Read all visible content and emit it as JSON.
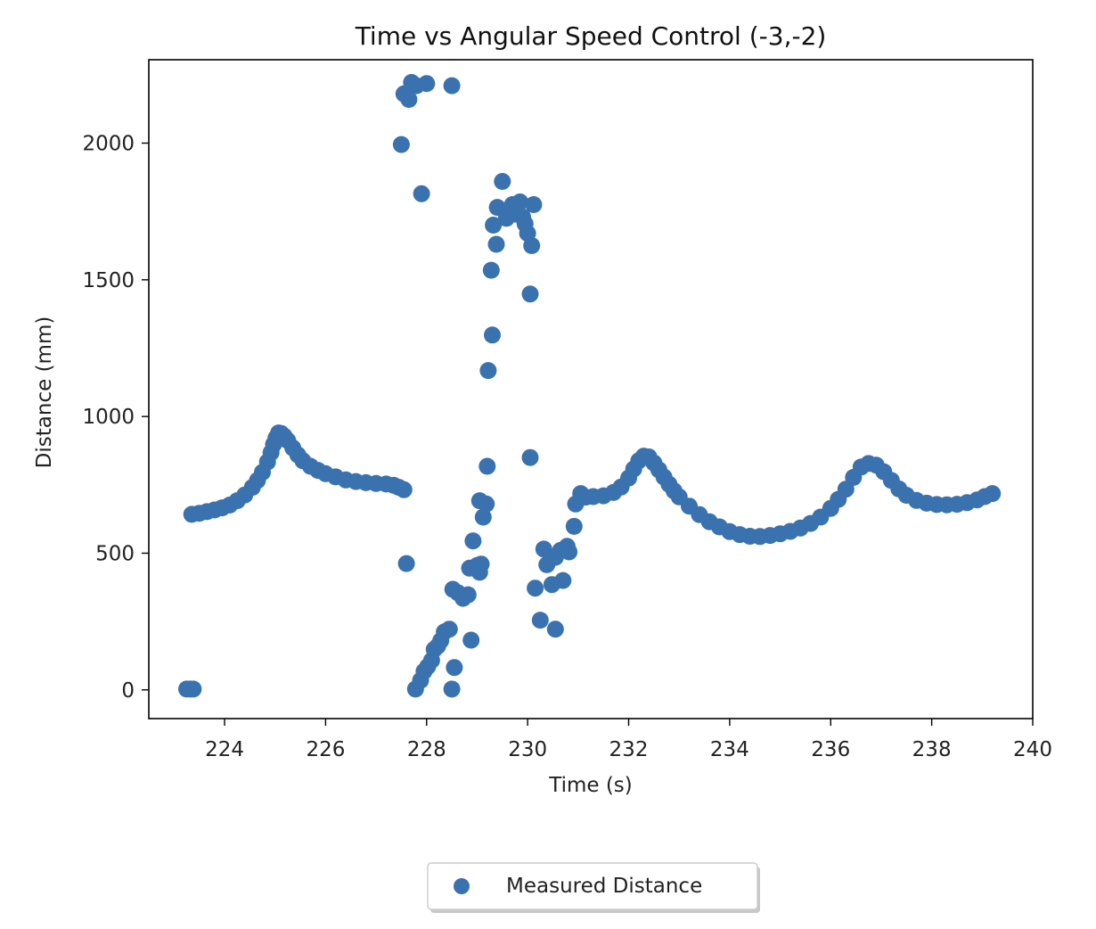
{
  "chart_data": {
    "type": "scatter",
    "title": "Time vs Angular Speed Control (-3,-2)",
    "xlabel": "Time (s)",
    "ylabel": "Distance (mm)",
    "xlim": [
      222.5,
      240
    ],
    "ylim": [
      -105,
      2305
    ],
    "xticks": [
      224,
      226,
      228,
      230,
      232,
      234,
      236,
      238,
      240
    ],
    "yticks": [
      0,
      500,
      1000,
      1500,
      2000
    ],
    "grid": false,
    "legend_position": "bottom-center",
    "series": [
      {
        "name": "Measured Distance",
        "color": "#3a72b0",
        "points": [
          [
            223.25,
            3
          ],
          [
            223.32,
            3
          ],
          [
            223.38,
            3
          ],
          [
            223.35,
            642
          ],
          [
            223.5,
            646
          ],
          [
            223.65,
            652
          ],
          [
            223.8,
            658
          ],
          [
            223.95,
            666
          ],
          [
            224.1,
            676
          ],
          [
            224.25,
            692
          ],
          [
            224.4,
            713
          ],
          [
            224.55,
            741
          ],
          [
            224.65,
            766
          ],
          [
            224.75,
            796
          ],
          [
            224.85,
            834
          ],
          [
            224.92,
            868
          ],
          [
            224.97,
            898
          ],
          [
            225.02,
            922
          ],
          [
            225.07,
            940
          ],
          [
            225.12,
            938
          ],
          [
            225.18,
            928
          ],
          [
            225.25,
            912
          ],
          [
            225.35,
            885
          ],
          [
            225.45,
            860
          ],
          [
            225.55,
            838
          ],
          [
            225.7,
            818
          ],
          [
            225.85,
            803
          ],
          [
            226.0,
            791
          ],
          [
            226.2,
            779
          ],
          [
            226.4,
            768
          ],
          [
            226.6,
            762
          ],
          [
            226.8,
            758
          ],
          [
            227.0,
            755
          ],
          [
            227.2,
            753
          ],
          [
            227.35,
            748
          ],
          [
            227.45,
            741
          ],
          [
            227.55,
            732
          ],
          [
            227.6,
            462
          ],
          [
            227.55,
            2180
          ],
          [
            227.65,
            2160
          ],
          [
            227.7,
            2222
          ],
          [
            227.8,
            2210
          ],
          [
            228.0,
            2218
          ],
          [
            228.5,
            2210
          ],
          [
            227.5,
            1995
          ],
          [
            227.9,
            1815
          ],
          [
            227.78,
            3
          ],
          [
            227.88,
            35
          ],
          [
            227.95,
            68
          ],
          [
            228.02,
            85
          ],
          [
            228.1,
            108
          ],
          [
            228.15,
            148
          ],
          [
            228.22,
            160
          ],
          [
            228.28,
            180
          ],
          [
            228.35,
            212
          ],
          [
            228.45,
            222
          ],
          [
            228.5,
            3
          ],
          [
            228.55,
            82
          ],
          [
            228.52,
            368
          ],
          [
            228.62,
            355
          ],
          [
            228.72,
            335
          ],
          [
            228.82,
            348
          ],
          [
            228.85,
            445
          ],
          [
            228.88,
            182
          ],
          [
            228.92,
            545
          ],
          [
            229.0,
            455
          ],
          [
            229.05,
            430
          ],
          [
            229.08,
            460
          ],
          [
            229.05,
            692
          ],
          [
            229.12,
            632
          ],
          [
            229.18,
            680
          ],
          [
            229.2,
            818
          ],
          [
            229.22,
            1168
          ],
          [
            229.3,
            1298
          ],
          [
            229.28,
            1535
          ],
          [
            229.32,
            1700
          ],
          [
            229.38,
            1630
          ],
          [
            229.4,
            1765
          ],
          [
            229.5,
            1860
          ],
          [
            229.58,
            1725
          ],
          [
            229.62,
            1755
          ],
          [
            229.7,
            1775
          ],
          [
            229.78,
            1740
          ],
          [
            229.85,
            1785
          ],
          [
            229.9,
            1730
          ],
          [
            229.95,
            1705
          ],
          [
            230.0,
            1670
          ],
          [
            230.05,
            1448
          ],
          [
            230.08,
            1625
          ],
          [
            230.12,
            1775
          ],
          [
            230.05,
            850
          ],
          [
            230.15,
            372
          ],
          [
            230.25,
            255
          ],
          [
            230.32,
            515
          ],
          [
            230.38,
            458
          ],
          [
            230.48,
            385
          ],
          [
            230.55,
            222
          ],
          [
            230.55,
            485
          ],
          [
            230.65,
            510
          ],
          [
            230.7,
            400
          ],
          [
            230.78,
            525
          ],
          [
            230.82,
            505
          ],
          [
            230.92,
            598
          ],
          [
            230.95,
            680
          ],
          [
            231.05,
            718
          ],
          [
            231.15,
            705
          ],
          [
            231.3,
            707
          ],
          [
            231.5,
            710
          ],
          [
            231.7,
            722
          ],
          [
            231.85,
            742
          ],
          [
            232.0,
            775
          ],
          [
            232.1,
            808
          ],
          [
            232.2,
            838
          ],
          [
            232.3,
            855
          ],
          [
            232.4,
            852
          ],
          [
            232.5,
            830
          ],
          [
            232.6,
            805
          ],
          [
            232.7,
            778
          ],
          [
            232.8,
            752
          ],
          [
            232.9,
            728
          ],
          [
            233.0,
            706
          ],
          [
            233.2,
            672
          ],
          [
            233.4,
            641
          ],
          [
            233.6,
            615
          ],
          [
            233.8,
            596
          ],
          [
            234.0,
            579
          ],
          [
            234.2,
            568
          ],
          [
            234.4,
            562
          ],
          [
            234.6,
            561
          ],
          [
            234.8,
            565
          ],
          [
            235.0,
            571
          ],
          [
            235.2,
            580
          ],
          [
            235.4,
            592
          ],
          [
            235.6,
            609
          ],
          [
            235.8,
            632
          ],
          [
            236.0,
            664
          ],
          [
            236.15,
            697
          ],
          [
            236.3,
            734
          ],
          [
            236.45,
            777
          ],
          [
            236.6,
            815
          ],
          [
            236.75,
            828
          ],
          [
            236.9,
            822
          ],
          [
            237.05,
            798
          ],
          [
            237.2,
            766
          ],
          [
            237.35,
            735
          ],
          [
            237.5,
            712
          ],
          [
            237.7,
            693
          ],
          [
            237.9,
            683
          ],
          [
            238.1,
            678
          ],
          [
            238.3,
            677
          ],
          [
            238.5,
            679
          ],
          [
            238.7,
            685
          ],
          [
            238.9,
            695
          ],
          [
            239.05,
            707
          ],
          [
            239.2,
            718
          ]
        ]
      }
    ]
  }
}
